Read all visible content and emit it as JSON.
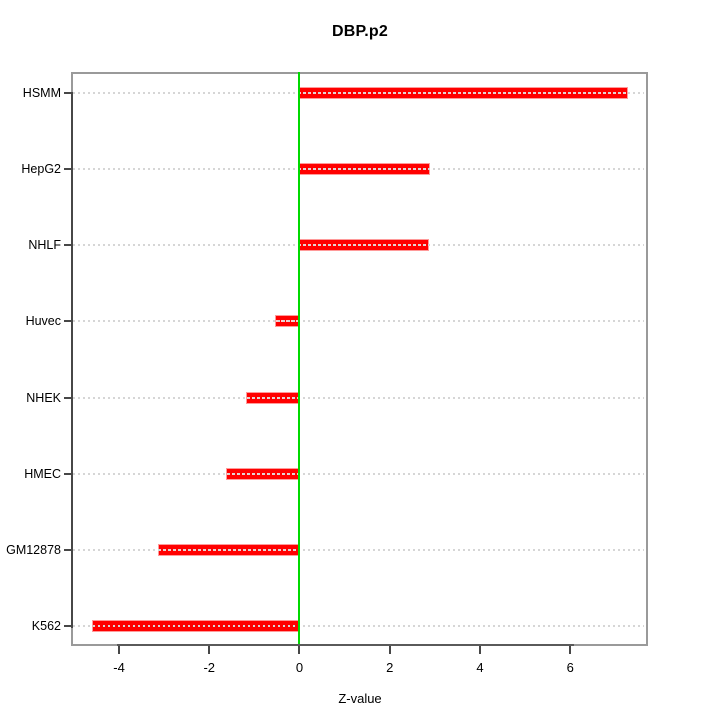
{
  "chart_data": {
    "type": "bar",
    "orientation": "horizontal",
    "title": "DBP.p2",
    "xlabel": "Z-value",
    "ylabel": "",
    "categories": [
      "HSMM",
      "HepG2",
      "NHLF",
      "Huvec",
      "NHEK",
      "HMEC",
      "GM12878",
      "K562"
    ],
    "values": [
      7.25,
      2.88,
      2.85,
      -0.52,
      -1.17,
      -1.61,
      -3.11,
      -4.57
    ],
    "x_ticks": [
      -4,
      -2,
      0,
      2,
      4,
      6
    ],
    "x_tick_labels": [
      "-4",
      "-2",
      "0",
      "2",
      "4",
      "6"
    ],
    "xlim": [
      -5.02,
      7.68
    ],
    "baseline": 0,
    "grid": "dotted-horizontal-per-category",
    "legend": "none",
    "colors": {
      "bar": "#ff0000",
      "zero_line": "#00d900",
      "grid_line": "#d6d6d6",
      "plot_border": "#9a9a9a",
      "axis_line": "#474747",
      "text": "#000000",
      "background": "#ffffff"
    }
  }
}
